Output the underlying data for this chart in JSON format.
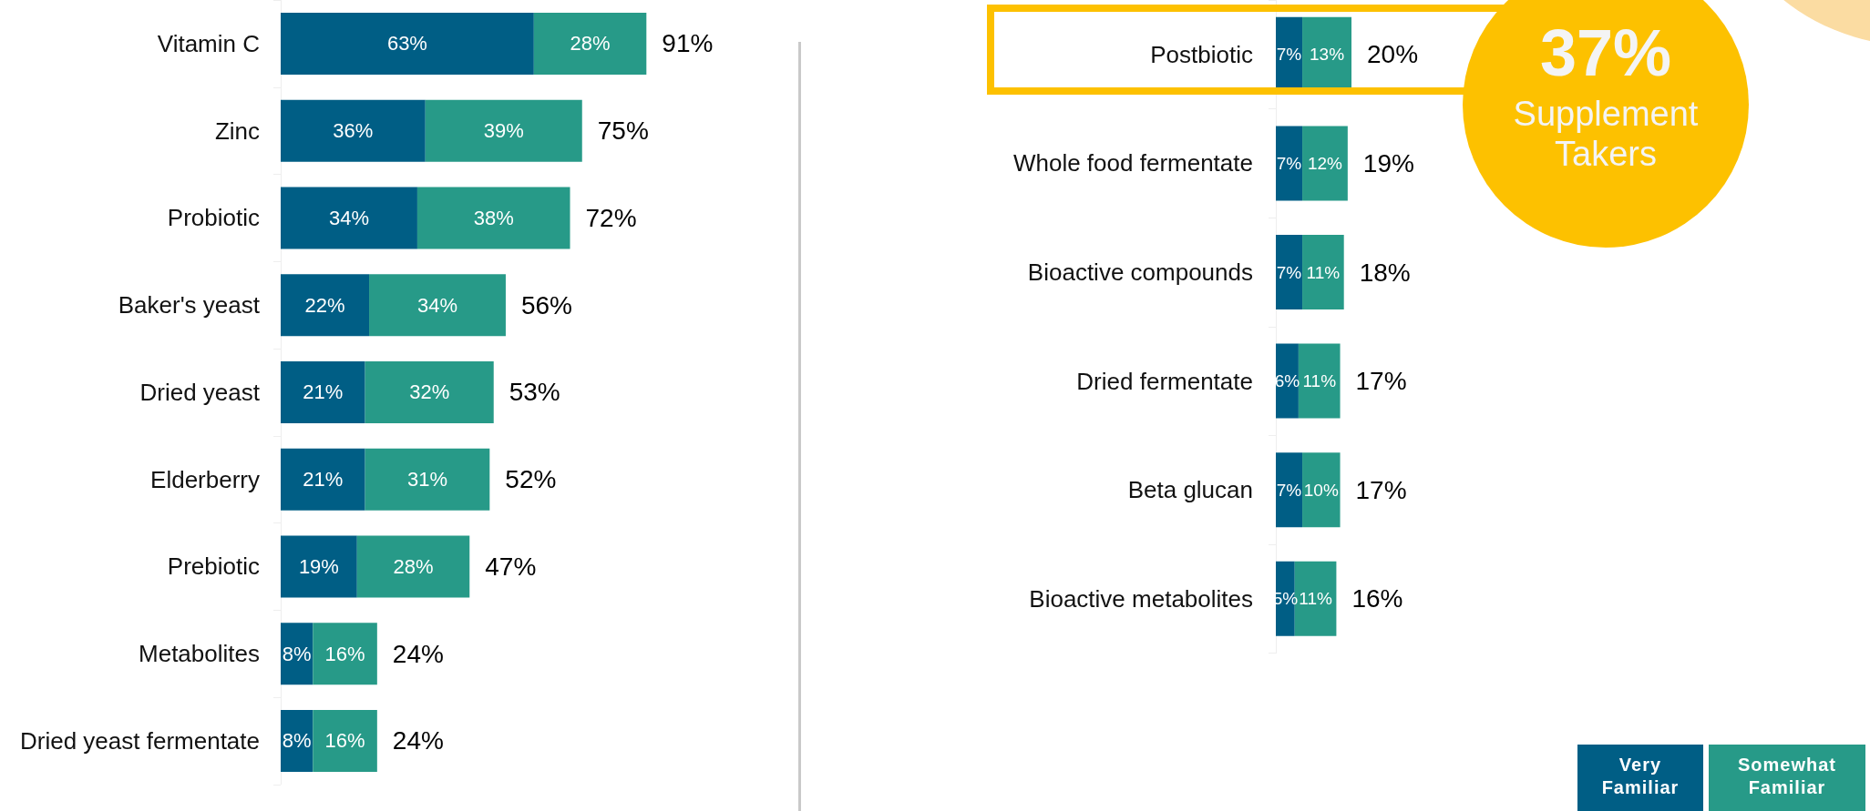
{
  "chart_data": [
    {
      "type": "bar",
      "orientation": "horizontal",
      "stacked": true,
      "tick_labels": "y",
      "grid": false,
      "categories": [
        "Vitamin C",
        "Zinc",
        "Probiotic",
        "Baker's yeast",
        "Dried yeast",
        "Elderberry",
        "Prebiotic",
        "Metabolites",
        "Dried yeast fermentate"
      ],
      "series": [
        {
          "color": "#005e85",
          "values": [
            63,
            36,
            34,
            22,
            21,
            21,
            19,
            8,
            8
          ],
          "value_labels": [
            "63%",
            "36%",
            "34%",
            "22%",
            "21%",
            "21%",
            "19%",
            "8%",
            "8%"
          ]
        },
        {
          "color": "#279a88",
          "values": [
            28,
            39,
            38,
            34,
            32,
            31,
            28,
            16,
            16
          ],
          "value_labels": [
            "28%",
            "39%",
            "38%",
            "34%",
            "32%",
            "31%",
            "28%",
            "16%",
            "16%"
          ]
        }
      ],
      "totals": [
        "91%",
        "75%",
        "72%",
        "56%",
        "53%",
        "52%",
        "47%",
        "24%",
        "24%"
      ]
    },
    {
      "type": "bar",
      "orientation": "horizontal",
      "stacked": true,
      "tick_labels": "y",
      "grid": false,
      "legend": "bottom right",
      "categories": [
        "Postbiotic",
        "Whole food fermentate",
        "Bioactive compounds",
        "Dried fermentate",
        "Beta glucan",
        "Bioactive metabolites"
      ],
      "series": [
        {
          "name": "Very Familiar",
          "color": "#005e85",
          "values": [
            7,
            7,
            7,
            6,
            7,
            5
          ],
          "value_labels": [
            "7%",
            "7%",
            "7%",
            "6%",
            "7%",
            "5%"
          ]
        },
        {
          "name": "Somewhat Familiar",
          "color": "#279a88",
          "values": [
            13,
            12,
            11,
            11,
            10,
            11
          ],
          "value_labels": [
            "13%",
            "12%",
            "11%",
            "11%",
            "10%",
            "11%"
          ]
        }
      ],
      "totals": [
        "20%",
        "19%",
        "18%",
        "17%",
        "17%",
        "16%"
      ],
      "annotations": [
        "37%",
        "Supplement Takers"
      ]
    }
  ]
}
